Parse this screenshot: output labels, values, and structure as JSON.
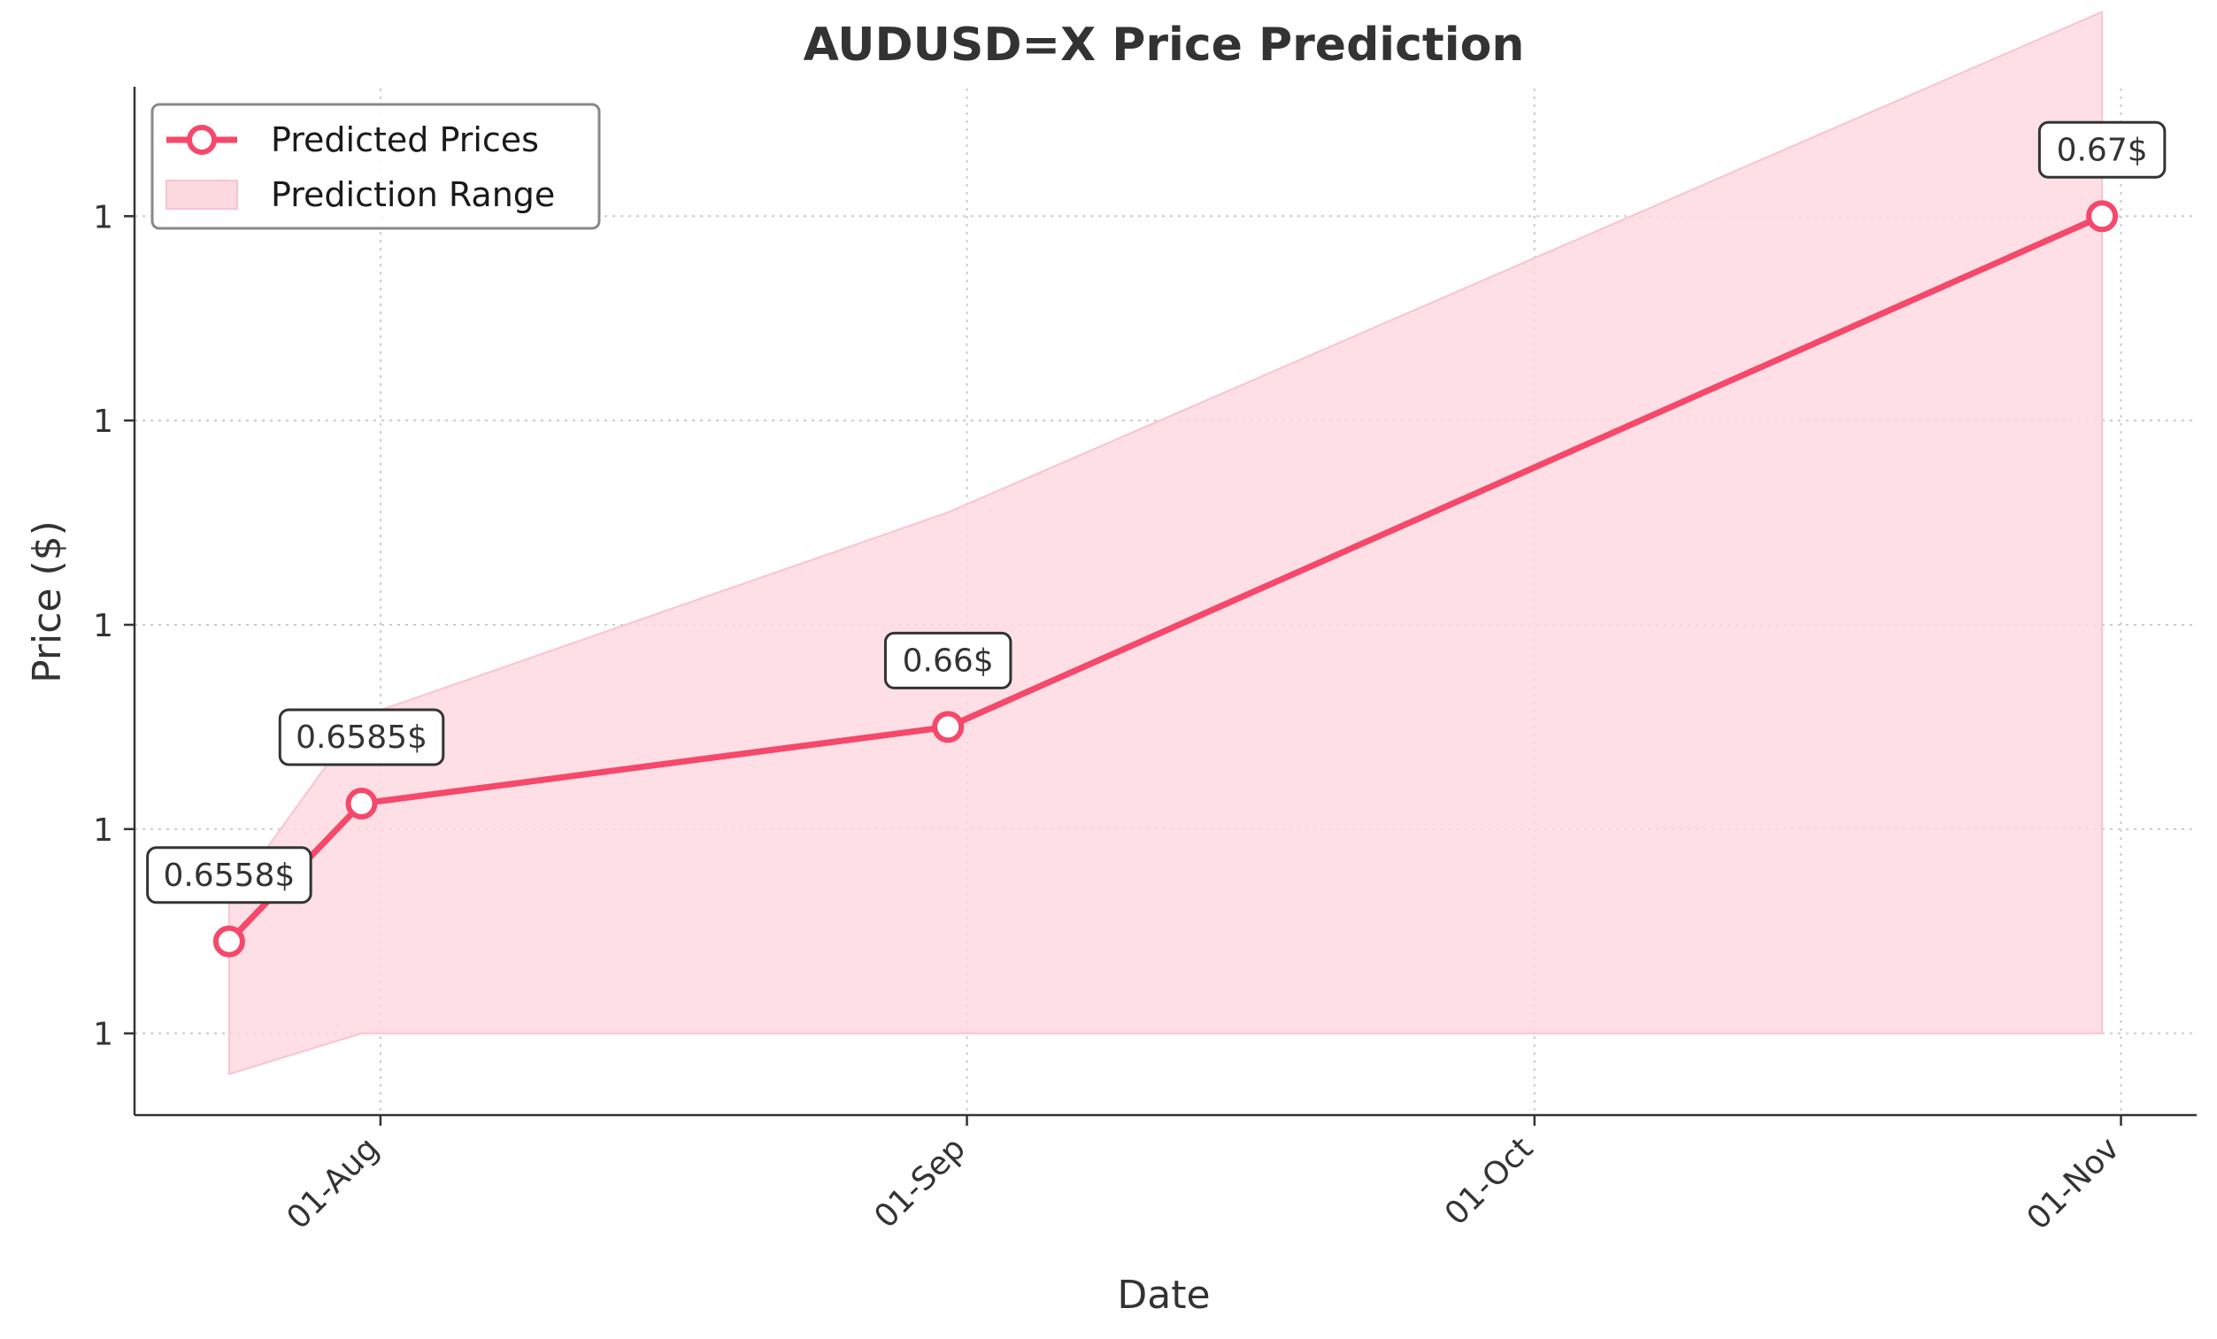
{
  "chart_data": {
    "type": "line",
    "title": "AUDUSD=X Price Prediction",
    "xlabel": "Date",
    "ylabel": "Price ($)",
    "x_ticks": [
      "01-Aug",
      "01-Sep",
      "01-Oct",
      "01-Nov"
    ],
    "x_tick_dates": [
      "2024-08-01",
      "2024-09-01",
      "2024-10-01",
      "2024-11-01"
    ],
    "y_ticks": [
      0.654,
      0.658,
      0.662,
      0.666,
      0.67
    ],
    "y_tick_labels": [
      "1",
      "1",
      "1",
      "1",
      "1"
    ],
    "ylim": [
      0.6524,
      0.6725
    ],
    "xlim": [
      "2024-07-19",
      "2024-11-05"
    ],
    "grid": true,
    "legend_position": "top-left",
    "series": [
      {
        "name": "Predicted Prices",
        "color": "#f5486a",
        "points": [
          {
            "x": "2024-07-24",
            "y": 0.6558,
            "label": "0.6558$"
          },
          {
            "x": "2024-07-31",
            "y": 0.6585,
            "label": "0.6585$"
          },
          {
            "x": "2024-08-31",
            "y": 0.66,
            "label": "0.66$"
          },
          {
            "x": "2024-10-31",
            "y": 0.67,
            "label": "0.67$"
          }
        ]
      }
    ],
    "range": {
      "name": "Prediction Range",
      "color": "#fdd9e0",
      "points": [
        {
          "x": "2024-07-24",
          "lower": 0.6532,
          "upper": 0.6566
        },
        {
          "x": "2024-07-31",
          "lower": 0.654,
          "upper": 0.6602
        },
        {
          "x": "2024-08-31",
          "lower": 0.654,
          "upper": 0.6642
        },
        {
          "x": "2024-10-31",
          "lower": 0.654,
          "upper": 0.674
        }
      ]
    }
  }
}
